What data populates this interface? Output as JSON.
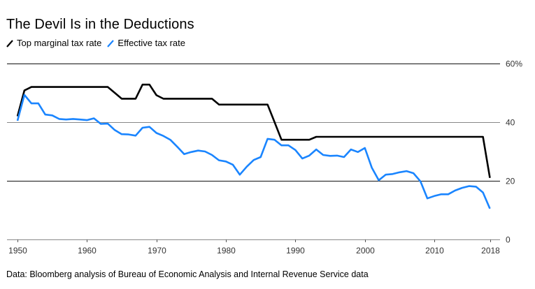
{
  "chart_data": {
    "type": "line",
    "title": "The Devil Is in the Deductions",
    "xlabel": "",
    "ylabel": "",
    "xlim": [
      1950,
      2018
    ],
    "ylim": [
      0,
      60
    ],
    "y_ticks": [
      {
        "value": 60,
        "label": "60%"
      },
      {
        "value": 40,
        "label": "40"
      },
      {
        "value": 20,
        "label": "20"
      },
      {
        "value": 0,
        "label": "0"
      }
    ],
    "x_ticks": [
      {
        "value": 1950,
        "label": "1950"
      },
      {
        "value": 1960,
        "label": "1960"
      },
      {
        "value": 1970,
        "label": "1970"
      },
      {
        "value": 1980,
        "label": "1980"
      },
      {
        "value": 1990,
        "label": "1990"
      },
      {
        "value": 2000,
        "label": "2000"
      },
      {
        "value": 2010,
        "label": "2010"
      },
      {
        "value": 2018,
        "label": "2018"
      }
    ],
    "grid": true,
    "legend_position": "top-left",
    "series": [
      {
        "name": "Top marginal tax rate",
        "color": "#000000",
        "points": [
          [
            1950,
            42
          ],
          [
            1951,
            50.8
          ],
          [
            1952,
            52
          ],
          [
            1953,
            52
          ],
          [
            1954,
            52
          ],
          [
            1955,
            52
          ],
          [
            1956,
            52
          ],
          [
            1957,
            52
          ],
          [
            1958,
            52
          ],
          [
            1959,
            52
          ],
          [
            1960,
            52
          ],
          [
            1961,
            52
          ],
          [
            1962,
            52
          ],
          [
            1963,
            52
          ],
          [
            1964,
            50
          ],
          [
            1965,
            48
          ],
          [
            1966,
            48
          ],
          [
            1967,
            48
          ],
          [
            1968,
            52.8
          ],
          [
            1969,
            52.8
          ],
          [
            1970,
            49.2
          ],
          [
            1971,
            48
          ],
          [
            1972,
            48
          ],
          [
            1973,
            48
          ],
          [
            1974,
            48
          ],
          [
            1975,
            48
          ],
          [
            1976,
            48
          ],
          [
            1977,
            48
          ],
          [
            1978,
            48
          ],
          [
            1979,
            46
          ],
          [
            1980,
            46
          ],
          [
            1981,
            46
          ],
          [
            1982,
            46
          ],
          [
            1983,
            46
          ],
          [
            1984,
            46
          ],
          [
            1985,
            46
          ],
          [
            1986,
            46
          ],
          [
            1987,
            40
          ],
          [
            1988,
            34
          ],
          [
            1989,
            34
          ],
          [
            1990,
            34
          ],
          [
            1991,
            34
          ],
          [
            1992,
            34
          ],
          [
            1993,
            35
          ],
          [
            1994,
            35
          ],
          [
            1995,
            35
          ],
          [
            1996,
            35
          ],
          [
            1997,
            35
          ],
          [
            1998,
            35
          ],
          [
            1999,
            35
          ],
          [
            2000,
            35
          ],
          [
            2001,
            35
          ],
          [
            2002,
            35
          ],
          [
            2003,
            35
          ],
          [
            2004,
            35
          ],
          [
            2005,
            35
          ],
          [
            2006,
            35
          ],
          [
            2007,
            35
          ],
          [
            2008,
            35
          ],
          [
            2009,
            35
          ],
          [
            2010,
            35
          ],
          [
            2011,
            35
          ],
          [
            2012,
            35
          ],
          [
            2013,
            35
          ],
          [
            2014,
            35
          ],
          [
            2015,
            35
          ],
          [
            2016,
            35
          ],
          [
            2017,
            35
          ],
          [
            2018,
            21
          ]
        ]
      },
      {
        "name": "Effective tax rate",
        "color": "#1a85ff",
        "points": [
          [
            1950,
            40.5
          ],
          [
            1951,
            49.3
          ],
          [
            1952,
            46.4
          ],
          [
            1953,
            46.4
          ],
          [
            1954,
            42.6
          ],
          [
            1955,
            42.3
          ],
          [
            1956,
            41.1
          ],
          [
            1957,
            40.9
          ],
          [
            1958,
            41.1
          ],
          [
            1959,
            40.9
          ],
          [
            1960,
            40.7
          ],
          [
            1961,
            41.3
          ],
          [
            1962,
            39.4
          ],
          [
            1963,
            39.5
          ],
          [
            1964,
            37.3
          ],
          [
            1965,
            35.9
          ],
          [
            1966,
            35.8
          ],
          [
            1967,
            35.4
          ],
          [
            1968,
            38.1
          ],
          [
            1969,
            38.4
          ],
          [
            1970,
            36.3
          ],
          [
            1971,
            35.3
          ],
          [
            1972,
            34.0
          ],
          [
            1973,
            31.6
          ],
          [
            1974,
            29.1
          ],
          [
            1975,
            29.8
          ],
          [
            1976,
            30.3
          ],
          [
            1977,
            30.0
          ],
          [
            1978,
            28.8
          ],
          [
            1979,
            27.0
          ],
          [
            1980,
            26.6
          ],
          [
            1981,
            25.5
          ],
          [
            1982,
            22.1
          ],
          [
            1983,
            24.8
          ],
          [
            1984,
            27.1
          ],
          [
            1985,
            28.1
          ],
          [
            1986,
            34.3
          ],
          [
            1987,
            34.0
          ],
          [
            1988,
            32.1
          ],
          [
            1989,
            32.1
          ],
          [
            1990,
            30.5
          ],
          [
            1991,
            27.6
          ],
          [
            1992,
            28.6
          ],
          [
            1993,
            30.7
          ],
          [
            1994,
            28.8
          ],
          [
            1995,
            28.5
          ],
          [
            1996,
            28.6
          ],
          [
            1997,
            28.1
          ],
          [
            1998,
            30.7
          ],
          [
            1999,
            29.8
          ],
          [
            2000,
            31.2
          ],
          [
            2001,
            24.5
          ],
          [
            2002,
            20.2
          ],
          [
            2003,
            22.1
          ],
          [
            2004,
            22.3
          ],
          [
            2005,
            22.9
          ],
          [
            2006,
            23.3
          ],
          [
            2007,
            22.6
          ],
          [
            2008,
            19.8
          ],
          [
            2009,
            14.0
          ],
          [
            2010,
            14.8
          ],
          [
            2011,
            15.4
          ],
          [
            2012,
            15.4
          ],
          [
            2013,
            16.7
          ],
          [
            2014,
            17.6
          ],
          [
            2015,
            18.2
          ],
          [
            2016,
            18.0
          ],
          [
            2017,
            16.0
          ],
          [
            2018,
            10.5
          ]
        ]
      }
    ],
    "source": "Data: Bloomberg analysis of Bureau of Economic Analysis and Internal Revenue Service data"
  }
}
